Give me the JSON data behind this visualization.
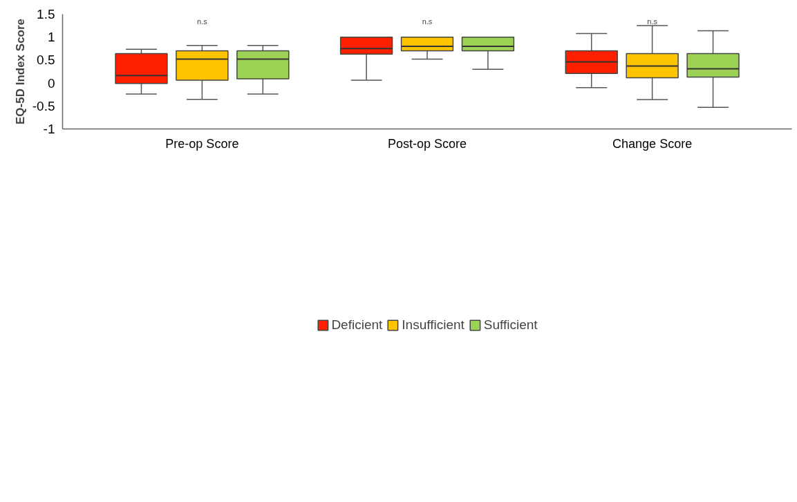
{
  "chart_data": {
    "type": "box",
    "ylabel": "EQ-5D Index Score",
    "categories": [
      "Pre-op Score",
      "Post-op Score",
      "Change Score"
    ],
    "ylim": [
      -1,
      1.5
    ],
    "yticks": [
      -1,
      -0.5,
      0,
      0.5,
      1,
      1.5
    ],
    "grid": false,
    "legend": "bottom",
    "annotations": [
      "n.s",
      "n.s",
      "n.s"
    ],
    "series": [
      {
        "name": "Deficient",
        "color": "#ff2000",
        "boxes": [
          {
            "low": -0.24,
            "q1": -0.01,
            "median": 0.165,
            "q3": 0.64,
            "high": 0.735
          },
          {
            "low": 0.06,
            "q1": 0.63,
            "median": 0.75,
            "q3": 1.0,
            "high": 1.0
          },
          {
            "low": -0.1,
            "q1": 0.21,
            "median": 0.46,
            "q3": 0.7,
            "high": 1.08
          }
        ]
      },
      {
        "name": "Insufficient",
        "color": "#ffc400",
        "boxes": [
          {
            "low": -0.355,
            "q1": 0.06,
            "median": 0.52,
            "q3": 0.7,
            "high": 0.82
          },
          {
            "low": 0.52,
            "q1": 0.7,
            "median": 0.8,
            "q3": 1.0,
            "high": 1.0
          },
          {
            "low": -0.36,
            "q1": 0.115,
            "median": 0.37,
            "q3": 0.64,
            "high": 1.25
          }
        ]
      },
      {
        "name": "Sufficient",
        "color": "#9dd355",
        "boxes": [
          {
            "low": -0.24,
            "q1": 0.09,
            "median": 0.52,
            "q3": 0.7,
            "high": 0.82
          },
          {
            "low": 0.3,
            "q1": 0.7,
            "median": 0.8,
            "q3": 1.0,
            "high": 1.0
          },
          {
            "low": -0.53,
            "q1": 0.13,
            "median": 0.31,
            "q3": 0.64,
            "high": 1.14
          }
        ]
      }
    ]
  }
}
